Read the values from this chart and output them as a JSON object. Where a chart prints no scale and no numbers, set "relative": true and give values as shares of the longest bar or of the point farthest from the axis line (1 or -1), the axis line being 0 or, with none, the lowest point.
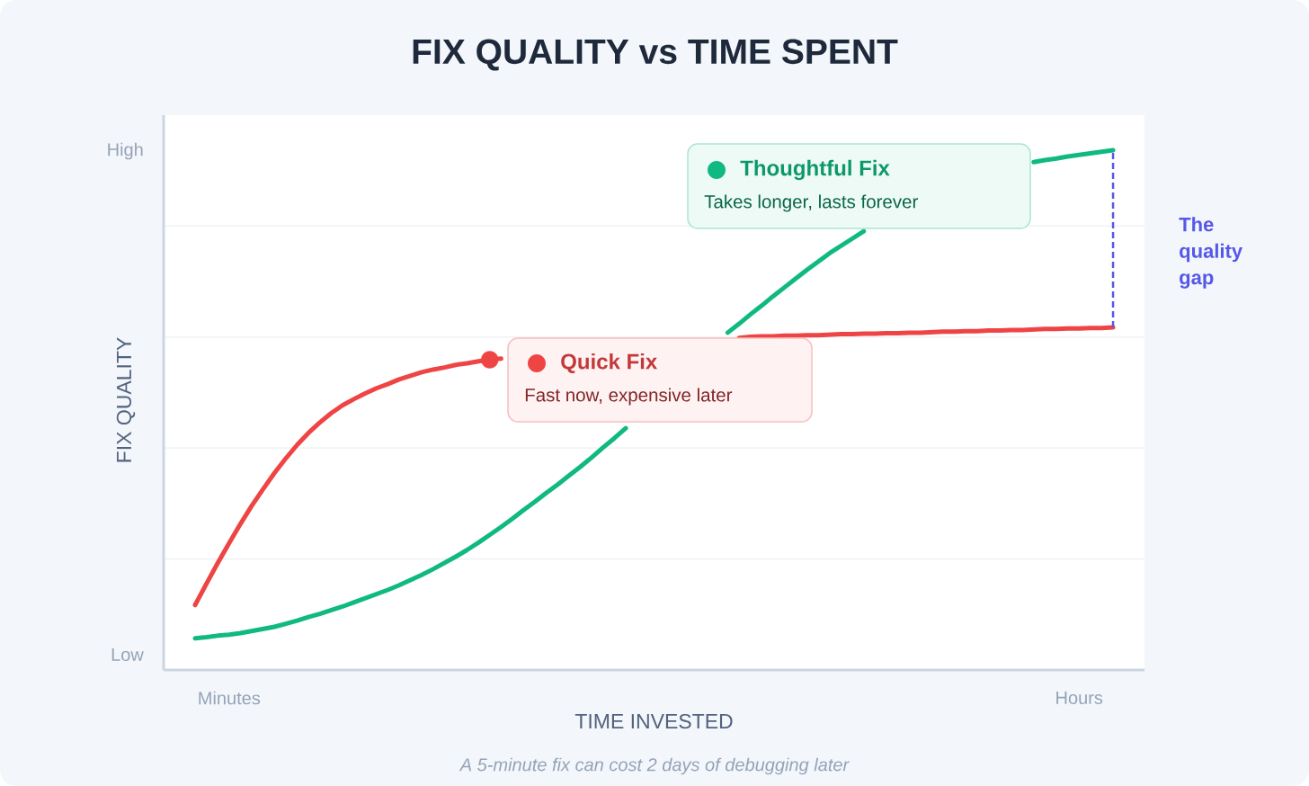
{
  "chart_data": {
    "type": "line",
    "title": "FIX QUALITY vs TIME SPENT",
    "xlabel": "TIME INVESTED",
    "ylabel": "FIX QUALITY",
    "relative": true,
    "grid": "y",
    "legend": "top",
    "categories": [
      null,
      null,
      null,
      "Minutes",
      null,
      null,
      null,
      null,
      null,
      null,
      null,
      null,
      null,
      null,
      null,
      null,
      null,
      null,
      null,
      null,
      null,
      null,
      null,
      null,
      null,
      null,
      null,
      null,
      null,
      null,
      null,
      null,
      null,
      null,
      null,
      null,
      null,
      null,
      null,
      null,
      null,
      null,
      null,
      null,
      null,
      null,
      null,
      null,
      null,
      null,
      null,
      null,
      null,
      null,
      null,
      null,
      null,
      null,
      null,
      null,
      null,
      null,
      null,
      null,
      null,
      null,
      null,
      null,
      null,
      null,
      null,
      null,
      null,
      null,
      null,
      null,
      null,
      null,
      "Hours",
      null,
      null,
      null
    ],
    "series": [
      {
        "name": "Quick Fix",
        "color": "#ef4444",
        "values": [
          0.125,
          0.166,
          0.206,
          0.244,
          0.281,
          0.316,
          0.348,
          0.379,
          0.407,
          0.433,
          0.456,
          0.476,
          0.494,
          0.509,
          0.521,
          0.532,
          0.542,
          0.55,
          0.559,
          0.566,
          0.573,
          0.578,
          0.582,
          0.587,
          0.59,
          0.594,
          0.597,
          0.599,
          null,
          null,
          null,
          null,
          null,
          null,
          null,
          null,
          null,
          null,
          null,
          null,
          null,
          null,
          null,
          null,
          null,
          null,
          null,
          null,
          0.639,
          0.641,
          0.642,
          0.642,
          0.643,
          0.643,
          0.644,
          0.644,
          0.645,
          0.646,
          0.646,
          0.647,
          0.647,
          0.648,
          0.648,
          0.649,
          0.649,
          0.65,
          0.651,
          0.651,
          0.652,
          0.652,
          0.653,
          0.653,
          0.654,
          0.654,
          0.655,
          0.656,
          0.656,
          0.657,
          0.657,
          0.658,
          0.658,
          0.659
        ]
      },
      {
        "name": "Thoughtful Fix",
        "color": "#10b981",
        "values": [
          0.061,
          0.063,
          0.066,
          0.068,
          0.071,
          0.075,
          0.079,
          0.083,
          0.089,
          0.095,
          0.102,
          0.108,
          0.115,
          0.122,
          0.13,
          0.138,
          0.146,
          0.154,
          0.163,
          0.173,
          0.183,
          0.194,
          0.206,
          0.218,
          0.231,
          0.245,
          0.26,
          0.275,
          0.291,
          0.308,
          0.324,
          0.341,
          0.357,
          0.374,
          0.391,
          0.409,
          0.428,
          0.446,
          0.465,
          null,
          null,
          null,
          null,
          null,
          null,
          null,
          null,
          0.649,
          0.666,
          0.684,
          0.701,
          0.719,
          0.736,
          0.753,
          0.77,
          0.786,
          0.802,
          0.816,
          0.83,
          0.844,
          null,
          null,
          null,
          null,
          null,
          null,
          null,
          null,
          null,
          null,
          null,
          null,
          null,
          null,
          0.977,
          0.981,
          0.984,
          0.988,
          0.991,
          0.994,
          0.997,
          1.0
        ]
      },
      {
        "type": "scatter",
        "color": "#ef4444",
        "values": [
          null,
          null,
          null,
          null,
          null,
          null,
          null,
          null,
          null,
          null,
          null,
          null,
          null,
          null,
          null,
          null,
          null,
          null,
          null,
          null,
          null,
          null,
          null,
          null,
          null,
          null,
          0.597,
          null,
          null,
          null,
          null,
          null,
          null,
          null,
          null,
          null,
          null,
          null,
          null,
          null,
          null,
          null,
          null,
          null,
          null,
          null,
          null,
          null,
          null,
          null,
          null,
          null,
          null,
          null,
          null,
          null,
          null,
          null,
          null,
          null,
          null,
          null,
          null,
          null,
          null,
          null,
          null,
          null,
          null,
          null,
          null,
          null,
          null,
          null,
          null,
          null,
          null,
          null,
          null,
          null,
          null,
          null
        ]
      }
    ],
    "annotations": [
      "High",
      "Low",
      "Fast now, expensive later",
      "Takes longer, lasts forever",
      "The quality gap",
      "A 5-minute fix can cost 2 days of debugging later"
    ]
  }
}
